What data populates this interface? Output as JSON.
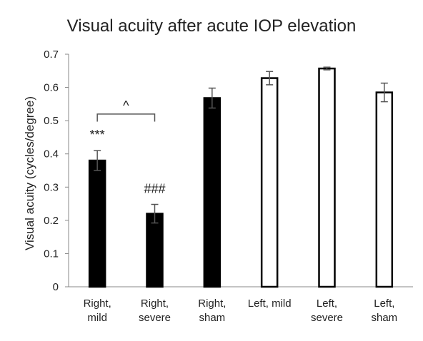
{
  "chart_data": {
    "type": "bar",
    "title": "Visual acuity after acute IOP elevation",
    "xlabel": "",
    "ylabel": "Visual acuity (cycles/degree)",
    "ylim": [
      0,
      0.7
    ],
    "yticks": [
      "0",
      "0.1",
      "0.2",
      "0.3",
      "0.4",
      "0.5",
      "0.6",
      "0.7"
    ],
    "ytick_values": [
      0,
      0.1,
      0.2,
      0.3,
      0.4,
      0.5,
      0.6,
      0.7
    ],
    "grid": false,
    "categories": [
      [
        "Right,",
        "mild"
      ],
      [
        "Right,",
        "severe"
      ],
      [
        "Right,",
        "sham"
      ],
      [
        "Left, mild"
      ],
      [
        "Left,",
        "severe"
      ],
      [
        "Left,",
        "sham"
      ]
    ],
    "values": [
      0.38,
      0.22,
      0.568,
      0.628,
      0.657,
      0.585
    ],
    "errors": [
      0.03,
      0.028,
      0.03,
      0.02,
      0.004,
      0.028
    ],
    "fills": [
      "#000000",
      "#000000",
      "#000000",
      "#ffffff",
      "#ffffff",
      "#ffffff"
    ],
    "bar_stroke": "#000000",
    "annotations": [
      {
        "text": "***",
        "bar": 0
      },
      {
        "text": "###",
        "bar": 1
      },
      {
        "text": "^",
        "between": [
          0,
          1
        ]
      }
    ]
  }
}
